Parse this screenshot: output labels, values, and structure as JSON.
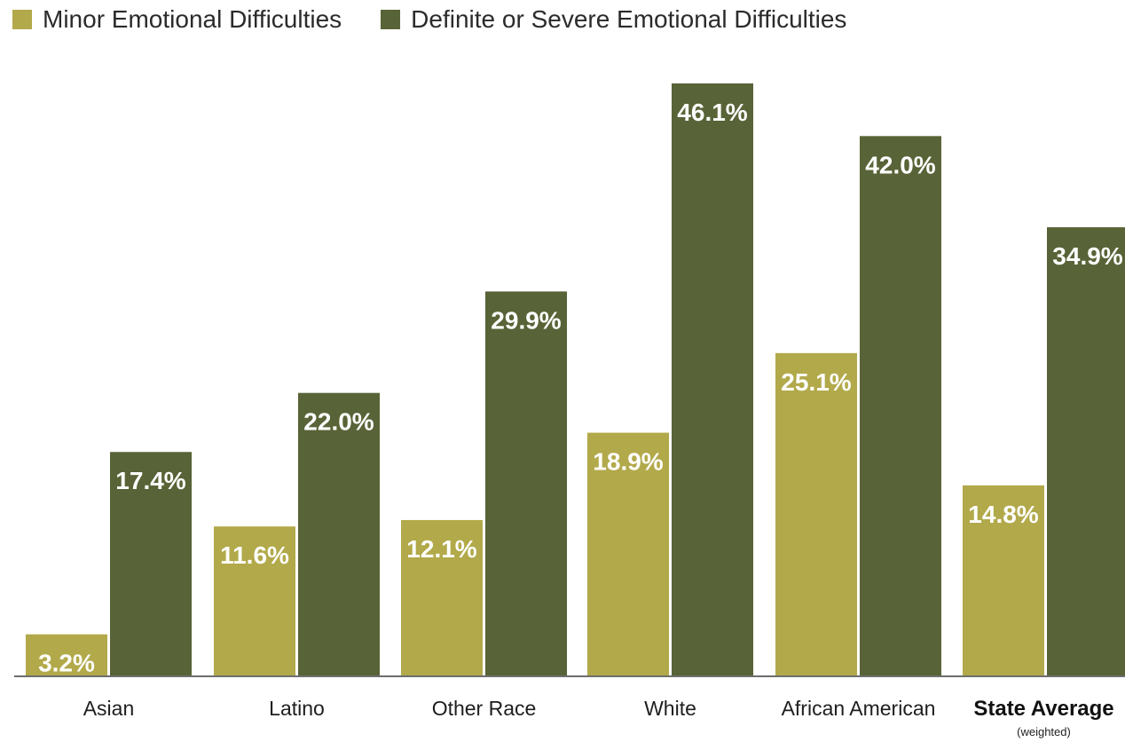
{
  "chart_data": {
    "type": "bar",
    "categories": [
      "Asian",
      "Latino",
      "Other Race",
      "White",
      "African American",
      "State Average"
    ],
    "category_note": {
      "State Average": "(weighted)"
    },
    "emphasized_category": "State Average",
    "series": [
      {
        "name": "Minor Emotional Difficulties",
        "values": [
          3.2,
          11.6,
          12.1,
          18.9,
          25.1,
          14.8
        ],
        "labels": [
          "3.2%",
          "11.6%",
          "12.1%",
          "18.9%",
          "25.1%",
          "14.8%"
        ],
        "color": "#b2a94a"
      },
      {
        "name": "Definite or Severe Emotional Difficulties",
        "values": [
          17.4,
          22.0,
          29.9,
          46.1,
          42.0,
          34.9
        ],
        "labels": [
          "17.4%",
          "22.0%",
          "29.9%",
          "46.1%",
          "42.0%",
          "34.9%"
        ],
        "color": "#586337"
      }
    ],
    "ylim": [
      0,
      46.1
    ],
    "grid": false,
    "legend_position": "top-left",
    "axis_color": "#6e6e6e"
  }
}
